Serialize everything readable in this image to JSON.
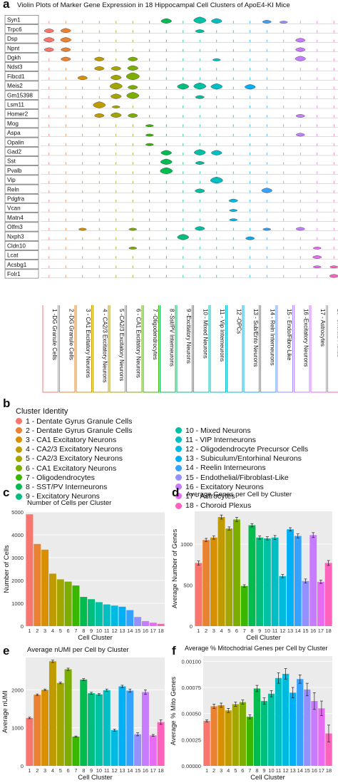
{
  "panel_a": {
    "letter": "a",
    "title": "Violin Plots of Marker Gene Expression in 18 Hippocampal Cell Clusters of ApoE4-KI Mice",
    "genes": [
      "Syn1",
      "Trpc6",
      "Dsp",
      "Npnt",
      "Dgkh",
      "Ndst3",
      "Fibcd1",
      "Meis2",
      "Gm15398",
      "Lsm11",
      "Homer2",
      "Mog",
      "Aspa",
      "Opalin",
      "Gad2",
      "Sst",
      "Pvalb",
      "Vip",
      "Reln",
      "Pdgfra",
      "Vcan",
      "Matn4",
      "Olfm3",
      "Nxph3",
      "Cldn10",
      "Lcat",
      "Acsbg1",
      "Folr1"
    ],
    "cluster_labels": [
      "1 -DG Granule Cells",
      "2 -DG Granule Cells",
      "3 - CA1 Excitatory Neurons",
      "4 - CA2/3 Excitatory Neurons",
      "5 -CA2/3 Excitatory Neurons",
      "6 - CA1 Excitatory Neurons",
      "7 -Oligodendrocytes",
      "8 -Sst/PV Interneurons",
      "9 -Excitatory Neurons",
      "10 - Mixed Neurons",
      "11 - Vip Interneurons",
      "12 -OPCs",
      "13 - Sub/Ento Neurons",
      "14 - Reln Interneurons",
      "15 - Endo/Fibro-Like",
      "16 -Excitatory Neurons",
      "17 - Astrocytes",
      "18 -Choroid Plexus"
    ]
  },
  "panel_b": {
    "letter": "b",
    "title": "Cluster Identity",
    "items": [
      {
        "label": "1 - Dentate Gyrus Granule Cells",
        "color": "#f8766d"
      },
      {
        "label": "2 - Dentate Gyrus Granule Cells",
        "color": "#ea8331"
      },
      {
        "label": "3 - CA1 Excitatory Neurons",
        "color": "#d89000"
      },
      {
        "label": "4 - CA2/3 Excitatory Neurons",
        "color": "#c09b00"
      },
      {
        "label": "5 - CA2/3 Excitatory Neurons",
        "color": "#a3a500"
      },
      {
        "label": "6 - CA1 Excitatory Neurons",
        "color": "#7cae00"
      },
      {
        "label": "7 - Oligodendrocytes",
        "color": "#39b600"
      },
      {
        "label": "8 - SST/PV Interneurons",
        "color": "#00bb4e"
      },
      {
        "label": "9 - Excitatory Neurons",
        "color": "#00bf7d"
      },
      {
        "label": "10 - Mixed Neurons",
        "color": "#00c1a3"
      },
      {
        "label": "11 - VIP Interneurons",
        "color": "#00bfc4"
      },
      {
        "label": "12 - Oligodendrocyte Precursor Cells",
        "color": "#00bae0"
      },
      {
        "label": "13 - Subiculum/Entorhinal Neurons",
        "color": "#00b0f6"
      },
      {
        "label": "14 - Reelin Interneurons",
        "color": "#35a2ff"
      },
      {
        "label": "15 - Endothelial/Fibroblast-Like",
        "color": "#9590ff"
      },
      {
        "label": "16 - Excitatory Neurons",
        "color": "#c77cff"
      },
      {
        "label": "17 - Astrocytes",
        "color": "#e76bf3"
      },
      {
        "label": "18 - Choroid Plexus",
        "color": "#ff62bc"
      }
    ]
  },
  "chart_data": [
    {
      "panel": "c",
      "type": "bar",
      "title": "Number of Cells per Cluster",
      "xlabel": "Cell Cluster",
      "ylabel": "Number of Cells",
      "categories": [
        "1",
        "2",
        "3",
        "4",
        "5",
        "6",
        "7",
        "8",
        "9",
        "10",
        "11",
        "12",
        "13",
        "14",
        "15",
        "16",
        "17",
        "18"
      ],
      "values": [
        4900,
        3600,
        3350,
        2300,
        2050,
        1950,
        1780,
        1280,
        1180,
        1050,
        950,
        900,
        850,
        700,
        400,
        220,
        150,
        100
      ],
      "ylim": [
        0,
        5000
      ],
      "yticks": [
        "0",
        "1000",
        "2000",
        "3000",
        "4000",
        "5000"
      ],
      "ytick_values": [
        0,
        1000,
        2000,
        3000,
        4000,
        5000
      ],
      "error_bars": false
    },
    {
      "panel": "d",
      "type": "bar",
      "title": "Average Genes per Cell by Cluster",
      "xlabel": "Cell Cluster",
      "ylabel": "Average Number of Genes",
      "categories": [
        "1",
        "2",
        "3",
        "4",
        "5",
        "6",
        "7",
        "8",
        "9",
        "10",
        "11",
        "12",
        "13",
        "14",
        "15",
        "16",
        "17",
        "18"
      ],
      "values": [
        770,
        1050,
        1080,
        1330,
        1190,
        1300,
        490,
        1230,
        1080,
        1070,
        1080,
        610,
        1180,
        1100,
        550,
        1110,
        540,
        770
      ],
      "errors": [
        25,
        20,
        20,
        25,
        20,
        25,
        15,
        20,
        20,
        20,
        25,
        20,
        20,
        25,
        25,
        30,
        20,
        30
      ],
      "ylim": [
        0,
        1400
      ],
      "yticks": [
        "0",
        "500",
        "1000"
      ],
      "ytick_values": [
        0,
        500,
        1000
      ],
      "error_bars": true
    },
    {
      "panel": "e",
      "type": "bar",
      "title": "Average nUMI per Cell by Cluster",
      "xlabel": "Cell Cluster",
      "ylabel": "Average nUMI",
      "categories": [
        "1",
        "2",
        "3",
        "4",
        "5",
        "6",
        "7",
        "8",
        "9",
        "10",
        "11",
        "12",
        "13",
        "14",
        "15",
        "16",
        "17",
        "18"
      ],
      "values": [
        1260,
        1870,
        2000,
        2750,
        2180,
        2540,
        770,
        2270,
        1910,
        1880,
        1990,
        940,
        2090,
        1980,
        830,
        1940,
        800,
        1150
      ],
      "errors": [
        20,
        20,
        20,
        30,
        20,
        30,
        15,
        25,
        25,
        20,
        30,
        25,
        30,
        40,
        40,
        60,
        25,
        60
      ],
      "ylim": [
        0,
        2850
      ],
      "yticks": [
        "0",
        "1000",
        "2000"
      ],
      "ytick_values": [
        0,
        1000,
        2000
      ],
      "error_bars": true
    },
    {
      "panel": "f",
      "type": "bar",
      "title": "Average % Mitochodrial Genes per Cell by Cluster",
      "xlabel": "Cell Cluster",
      "ylabel": "Average % Mito Genes",
      "categories": [
        "1",
        "2",
        "3",
        "4",
        "5",
        "6",
        "7",
        "8",
        "9",
        "10",
        "11",
        "12",
        "13",
        "14",
        "15",
        "16",
        "17",
        "18"
      ],
      "values": [
        0.00043,
        0.00057,
        0.00058,
        0.00053,
        0.00059,
        0.00061,
        0.00047,
        0.00074,
        0.00062,
        0.00069,
        0.00084,
        0.00088,
        0.0007,
        0.00083,
        0.00073,
        0.00062,
        0.00055,
        0.00031
      ],
      "errors": [
        1e-05,
        2e-05,
        2e-05,
        2e-05,
        2e-05,
        2e-05,
        2e-05,
        3e-05,
        3e-05,
        3e-05,
        5e-05,
        5e-05,
        5e-05,
        4e-05,
        6e-05,
        8e-05,
        7e-05,
        8e-05
      ],
      "ylim": [
        0,
        0.00105
      ],
      "yticks": [
        "0.00000",
        "0.00025",
        "0.00050",
        "0.00075",
        "0.00100"
      ],
      "ytick_values": [
        0,
        0.00025,
        0.0005,
        0.00075,
        0.001
      ],
      "error_bars": true
    }
  ]
}
